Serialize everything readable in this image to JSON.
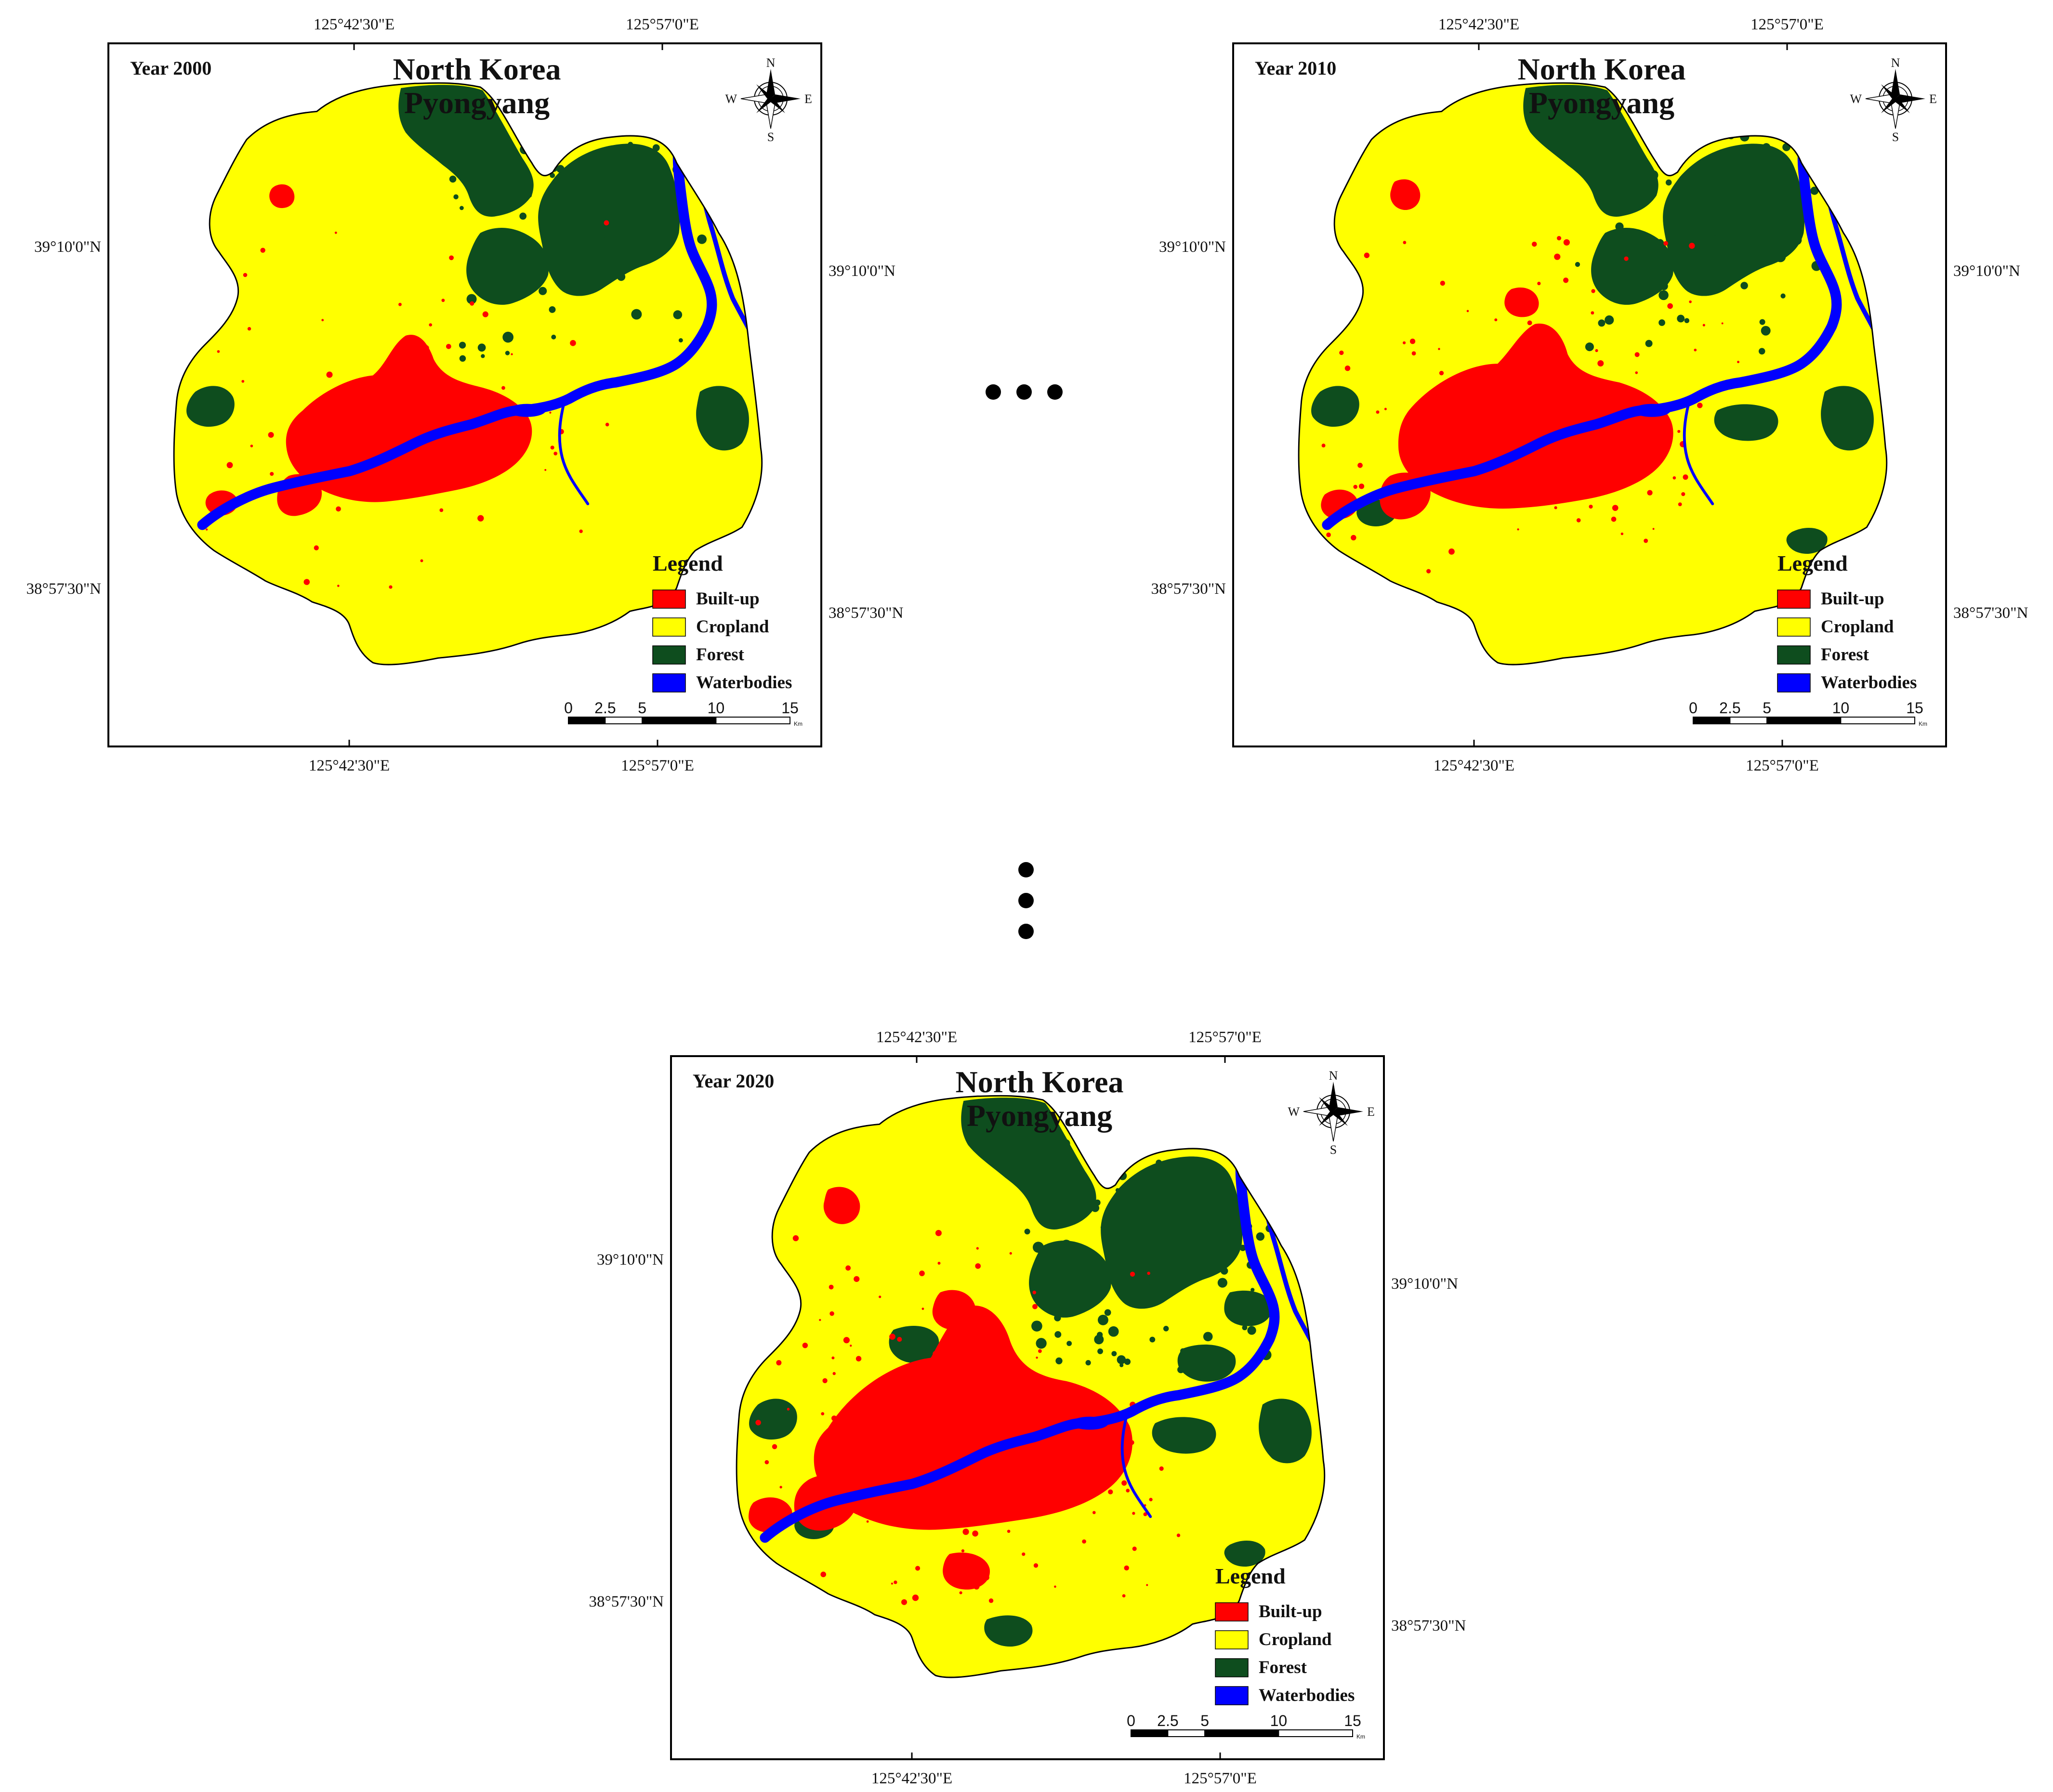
{
  "maps": [
    {
      "id": "map-2000",
      "year_label": "Year 2000",
      "title_line1": "North Korea",
      "title_line2": "Pyongyang",
      "stage": "early"
    },
    {
      "id": "map-2010",
      "year_label": "Year 2010",
      "title_line1": "North Korea",
      "title_line2": "Pyongyang",
      "stage": "mid"
    },
    {
      "id": "map-2020",
      "year_label": "Year 2020",
      "title_line1": "North Korea",
      "title_line2": "Pyongyang",
      "stage": "late"
    }
  ],
  "coordinates": {
    "top_lon_1": "125°42'30\"E",
    "top_lon_2": "125°57'0\"E",
    "bottom_lon_1": "125°42'30\"E",
    "bottom_lon_2": "125°57'0\"E",
    "left_lat_1": "39°10'0\"N",
    "left_lat_2": "38°57'30\"N",
    "right_lat_1": "39°10'0\"N",
    "right_lat_2": "38°57'30\"N"
  },
  "compass": {
    "n": "N",
    "s": "S",
    "e": "E",
    "w": "W"
  },
  "legend": {
    "title": "Legend",
    "items": [
      {
        "label": "Built-up",
        "color": "#ff0000"
      },
      {
        "label": "Cropland",
        "color": "#ffff00"
      },
      {
        "label": "Forest",
        "color": "#0e4d1e"
      },
      {
        "label": "Waterbodies",
        "color": "#0000ff"
      }
    ]
  },
  "scale_bar": {
    "ticks": [
      "0",
      "2.5",
      "5",
      "10",
      "15"
    ],
    "unit": "Km"
  },
  "colors": {
    "builtup": "#ff0000",
    "cropland": "#ffff00",
    "forest": "#0e4d1e",
    "water": "#0000ff",
    "outline": "#000000"
  }
}
